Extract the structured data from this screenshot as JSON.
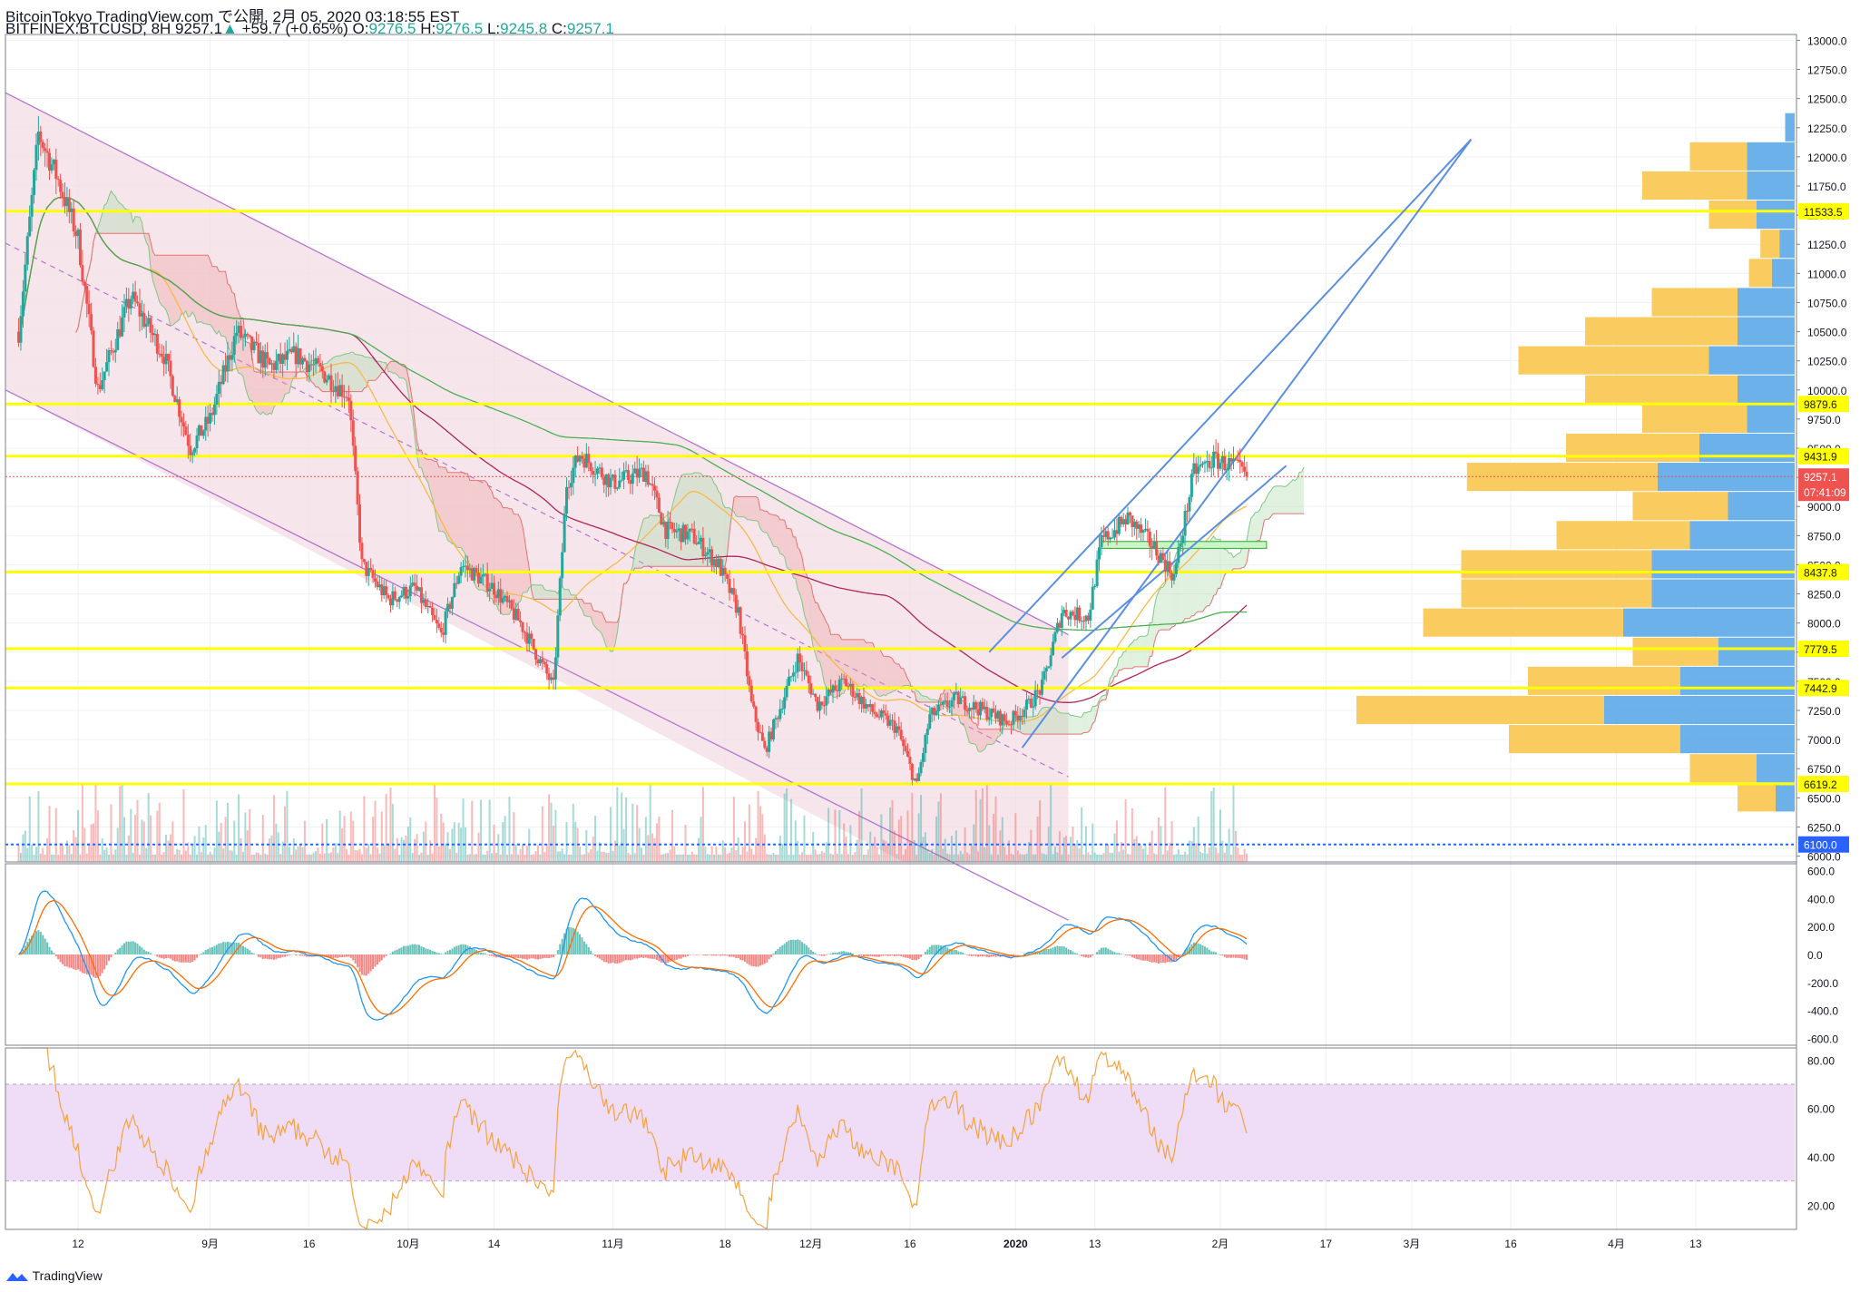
{
  "header": {
    "publisher_line": "BitcoinTokyo TradingView.com で公開, 2月 05, 2020 03:18:55 EST",
    "symbol": "BITFINEX:BTCUSD, 8H",
    "last": "9257.1",
    "change": "+59.7 (+0.65%)",
    "o_label": "O:",
    "o": "9276.5",
    "h_label": "H:",
    "h": "9276.5",
    "l_label": "L:",
    "l": "9245.8",
    "c_label": "C:",
    "c": "9257.1"
  },
  "colors": {
    "up": "#26a69a",
    "down": "#ef5350",
    "hline": "#ffff00",
    "trend": "#5b8fe0",
    "channel": "#b673cf",
    "channel_fill": "#f3dde6",
    "vp_up": "#5ca9e8",
    "vp_down": "#f9c74f",
    "rsi_band": "#efdcf7",
    "rsi_line": "#f6a340",
    "macd_line": "#2196f3",
    "signal_line": "#ff6d00"
  },
  "brand": "TradingView",
  "chart_data": {
    "type": "candlestick",
    "price_axis": {
      "ticks": [
        "13000.0",
        "12750.0",
        "12500.0",
        "12250.0",
        "12000.0",
        "11750.0",
        "11500.0",
        "11250.0",
        "11000.0",
        "10750.0",
        "10500.0",
        "10250.0",
        "10000.0",
        "9750.0",
        "9500.0",
        "9250.0",
        "9000.0",
        "8750.0",
        "8500.0",
        "8250.0",
        "8000.0",
        "7750.0",
        "7500.0",
        "7250.0",
        "7000.0",
        "6750.0",
        "6500.0",
        "6250.0",
        "6000.0"
      ],
      "range": [
        5950,
        13050
      ]
    },
    "time_axis": [
      "12",
      "9月",
      "16",
      "10月",
      "14",
      "11月",
      "18",
      "12月",
      "16",
      "2020",
      "13",
      "2月",
      "17",
      "3月",
      "16",
      "4月",
      "13"
    ],
    "horizontal_levels": [
      11533.5,
      9879.6,
      9431.9,
      8437.8,
      7779.5,
      7442.9,
      6619.2,
      6100.0
    ],
    "level_labels": [
      "11533.5",
      "9879.6",
      "9431.9",
      "8437.8",
      "7779.5",
      "7442.9",
      "6619.2",
      "6100.0"
    ],
    "current_price": "9257.1",
    "countdown": "07:41:09",
    "close_path": [
      [
        "2019-08-03",
        10500
      ],
      [
        "2019-08-06",
        12200
      ],
      [
        "2019-08-09",
        11800
      ],
      [
        "2019-08-12",
        11300
      ],
      [
        "2019-08-15",
        10000
      ],
      [
        "2019-08-20",
        10800
      ],
      [
        "2019-08-25",
        10300
      ],
      [
        "2019-08-29",
        9500
      ],
      [
        "2019-09-01",
        9750
      ],
      [
        "2019-09-05",
        10500
      ],
      [
        "2019-09-10",
        10200
      ],
      [
        "2019-09-14",
        10300
      ],
      [
        "2019-09-18",
        10150
      ],
      [
        "2019-09-22",
        9950
      ],
      [
        "2019-09-24",
        8500
      ],
      [
        "2019-09-28",
        8200
      ],
      [
        "2019-10-02",
        8300
      ],
      [
        "2019-10-06",
        7900
      ],
      [
        "2019-10-09",
        8500
      ],
      [
        "2019-10-14",
        8300
      ],
      [
        "2019-10-18",
        8000
      ],
      [
        "2019-10-23",
        7450
      ],
      [
        "2019-10-25",
        9200
      ],
      [
        "2019-10-27",
        9450
      ],
      [
        "2019-11-01",
        9200
      ],
      [
        "2019-11-06",
        9300
      ],
      [
        "2019-11-09",
        8800
      ],
      [
        "2019-11-13",
        8750
      ],
      [
        "2019-11-17",
        8500
      ],
      [
        "2019-11-20",
        8100
      ],
      [
        "2019-11-22",
        7300
      ],
      [
        "2019-11-24",
        6900
      ],
      [
        "2019-11-29",
        7700
      ],
      [
        "2019-12-02",
        7300
      ],
      [
        "2019-12-06",
        7500
      ],
      [
        "2019-12-10",
        7250
      ],
      [
        "2019-12-14",
        7100
      ],
      [
        "2019-12-17",
        6600
      ],
      [
        "2019-12-19",
        7200
      ],
      [
        "2019-12-23",
        7350
      ],
      [
        "2019-12-27",
        7250
      ],
      [
        "2019-12-31",
        7150
      ],
      [
        "2020-01-03",
        7300
      ],
      [
        "2020-01-05",
        7450
      ],
      [
        "2020-01-08",
        8100
      ],
      [
        "2020-01-12",
        8050
      ],
      [
        "2020-01-14",
        8700
      ],
      [
        "2020-01-18",
        8900
      ],
      [
        "2020-01-22",
        8650
      ],
      [
        "2020-01-25",
        8400
      ],
      [
        "2020-01-28",
        9300
      ],
      [
        "2020-01-31",
        9400
      ],
      [
        "2020-02-03",
        9350
      ],
      [
        "2020-02-05",
        9257.1
      ]
    ],
    "channel_bands": [
      {
        "name": "upper",
        "from": [
          "2019-08-01",
          12550
        ],
        "to": [
          "2020-01-09",
          7900
        ]
      },
      {
        "name": "lower",
        "from": [
          "2019-08-01",
          10000
        ],
        "to": [
          "2020-01-09",
          5450
        ]
      },
      {
        "name": "mid",
        "from": [
          "2019-08-01",
          11260
        ],
        "to": [
          "2020-01-09",
          6680
        ]
      }
    ],
    "trendlines": [
      {
        "from": [
          "2019-12-28",
          7750
        ],
        "to": [
          "2020-03-10",
          12150
        ]
      },
      {
        "from": [
          "2020-01-02",
          6930
        ],
        "to": [
          "2020-03-10",
          12150
        ]
      },
      {
        "from": [
          "2020-01-08",
          7700
        ],
        "to": [
          "2020-02-11",
          9350
        ]
      }
    ],
    "volume_profile": [
      {
        "price": 12250,
        "up": 0.05,
        "down": 0.0
      },
      {
        "price": 12000,
        "up": 0.25,
        "down": 0.3
      },
      {
        "price": 11750,
        "up": 0.25,
        "down": 0.55
      },
      {
        "price": 11500,
        "up": 0.2,
        "down": 0.25
      },
      {
        "price": 11250,
        "up": 0.08,
        "down": 0.1
      },
      {
        "price": 11000,
        "up": 0.12,
        "down": 0.12
      },
      {
        "price": 10750,
        "up": 0.3,
        "down": 0.45
      },
      {
        "price": 10500,
        "up": 0.3,
        "down": 0.8
      },
      {
        "price": 10250,
        "up": 0.45,
        "down": 1.0
      },
      {
        "price": 10000,
        "up": 0.3,
        "down": 0.8
      },
      {
        "price": 9750,
        "up": 0.25,
        "down": 0.55
      },
      {
        "price": 9500,
        "up": 0.5,
        "down": 0.7
      },
      {
        "price": 9250,
        "up": 0.72,
        "down": 1.0
      },
      {
        "price": 9000,
        "up": 0.35,
        "down": 0.5
      },
      {
        "price": 8750,
        "up": 0.55,
        "down": 0.7
      },
      {
        "price": 8500,
        "up": 0.75,
        "down": 1.0
      },
      {
        "price": 8250,
        "up": 0.75,
        "down": 1.0
      },
      {
        "price": 8000,
        "up": 0.9,
        "down": 1.05
      },
      {
        "price": 7750,
        "up": 0.4,
        "down": 0.45
      },
      {
        "price": 7500,
        "up": 0.6,
        "down": 0.8
      },
      {
        "price": 7250,
        "up": 1.0,
        "down": 1.3
      },
      {
        "price": 7000,
        "up": 0.6,
        "down": 0.9
      },
      {
        "price": 6750,
        "up": 0.2,
        "down": 0.35
      },
      {
        "price": 6500,
        "up": 0.1,
        "down": 0.2
      }
    ],
    "macd_axis": [
      "600.0",
      "400.0",
      "200.0",
      "0.0",
      "-200.0",
      "-400.0",
      "-600.0"
    ],
    "macd_range": [
      -650,
      650
    ],
    "rsi_axis": [
      "80.00",
      "60.00",
      "40.00",
      "20.00"
    ],
    "rsi_range": [
      10,
      85
    ],
    "rsi_band": [
      30,
      70
    ]
  }
}
